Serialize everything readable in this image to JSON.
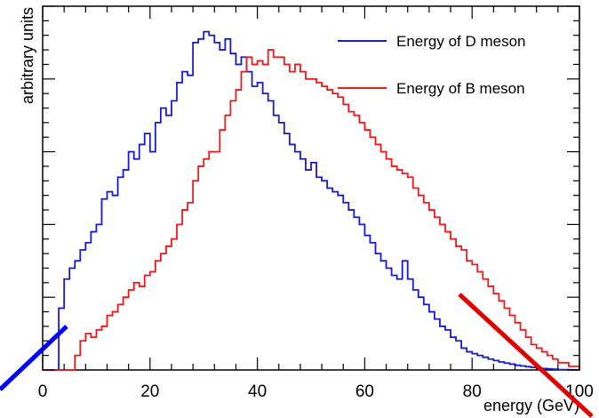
{
  "chart_data": {
    "type": "line",
    "xlabel": "energy (GeV)",
    "ylabel": "arbitrary units",
    "xlim": [
      0,
      100
    ],
    "ylim": [
      0,
      100
    ],
    "x_ticks": [
      0,
      20,
      40,
      60,
      80,
      100
    ],
    "bin_width": 1,
    "grid": false,
    "legend_position": "top-right",
    "series": [
      {
        "name": "Energy of D meson",
        "color": "#1a1ad0",
        "values": [
          0,
          0,
          0,
          17,
          25,
          28,
          30,
          33,
          35,
          38,
          40,
          47,
          49,
          48,
          53,
          55,
          60,
          58,
          62,
          65,
          60,
          68,
          72,
          70,
          74,
          79,
          82,
          81,
          90,
          91,
          93,
          92,
          90,
          88,
          91,
          87,
          84,
          86,
          82,
          78,
          79,
          76,
          74,
          70,
          68,
          65,
          62,
          60,
          58,
          55,
          57,
          53,
          52,
          50,
          49,
          48,
          46,
          44,
          42,
          40,
          37,
          35,
          32,
          30,
          28,
          26,
          25,
          30,
          25,
          22,
          20,
          18,
          16,
          14,
          12,
          11,
          9,
          8,
          6,
          5,
          4.5,
          4,
          3.5,
          3,
          2.6,
          2.2,
          1.9,
          1.6,
          1.3,
          1.1,
          0.9,
          0.7,
          0.5,
          0.4,
          0.3,
          0.2,
          0.1,
          0.1,
          0.05,
          0.05
        ]
      },
      {
        "name": "Energy of B meson",
        "color": "#f01818",
        "values": [
          0,
          0,
          0,
          0,
          0,
          0,
          4,
          8,
          10,
          9,
          11,
          12,
          15,
          16,
          18,
          20,
          22,
          24,
          23,
          26,
          27,
          30,
          32,
          34,
          36,
          40,
          44,
          46,
          52,
          56,
          58,
          60,
          60,
          66,
          70,
          74,
          77,
          82,
          86,
          84,
          85,
          84,
          88,
          86,
          86,
          84,
          82,
          84,
          82,
          80,
          80,
          79,
          78,
          77,
          76,
          75,
          73,
          71,
          70,
          68,
          66,
          64,
          62,
          60,
          58,
          56,
          55,
          54,
          53,
          50,
          48,
          46,
          44,
          42,
          40,
          38,
          36,
          34,
          33,
          30,
          29,
          27,
          25,
          23,
          21,
          19,
          17,
          15,
          13,
          11,
          9,
          7,
          6,
          5,
          4,
          3,
          2,
          2,
          1,
          1
        ]
      }
    ]
  }
}
